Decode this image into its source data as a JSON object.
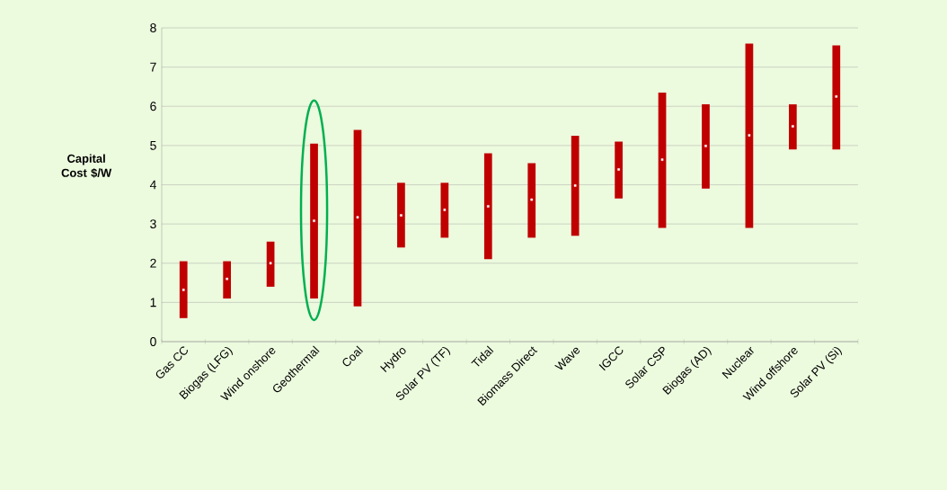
{
  "chart_data": {
    "type": "bar",
    "ylabel": "Capital Cost $/W",
    "categories": [
      "Gas CC",
      "Biogas (LFG)",
      "Wind onshore",
      "Geothermal",
      "Coal",
      "Hydro",
      "Solar PV (TF)",
      "Tidal",
      "Biomass Direct",
      "Wave",
      "IGCC",
      "Solar CSP",
      "Biogas (AD)",
      "Nuclear",
      "Wind offshore",
      "Solar PV (Si)"
    ],
    "series": [
      {
        "type": "bar",
        "color": "#c00000",
        "base": [
          0.6,
          1.1,
          1.4,
          1.1,
          0.9,
          2.4,
          2.65,
          2.1,
          2.65,
          2.7,
          3.65,
          2.9,
          3.9,
          2.9,
          4.9,
          4.9
        ],
        "values": [
          1.45,
          0.95,
          1.15,
          3.95,
          4.5,
          1.65,
          1.4,
          2.7,
          1.9,
          2.55,
          1.45,
          3.45,
          2.15,
          4.7,
          1.15,
          2.65
        ]
      },
      {
        "type": "scatter",
        "color": "#ffffff",
        "values": [
          1.32,
          1.6,
          2.0,
          3.08,
          3.17,
          3.22,
          3.36,
          3.45,
          3.62,
          3.98,
          4.39,
          4.64,
          4.99,
          5.26,
          5.49,
          6.25
        ]
      }
    ],
    "marker": "square",
    "ylim": [
      0,
      8
    ],
    "yticks": [
      0,
      1,
      2,
      3,
      4,
      5,
      6,
      7,
      8
    ],
    "grid": "y"
  }
}
